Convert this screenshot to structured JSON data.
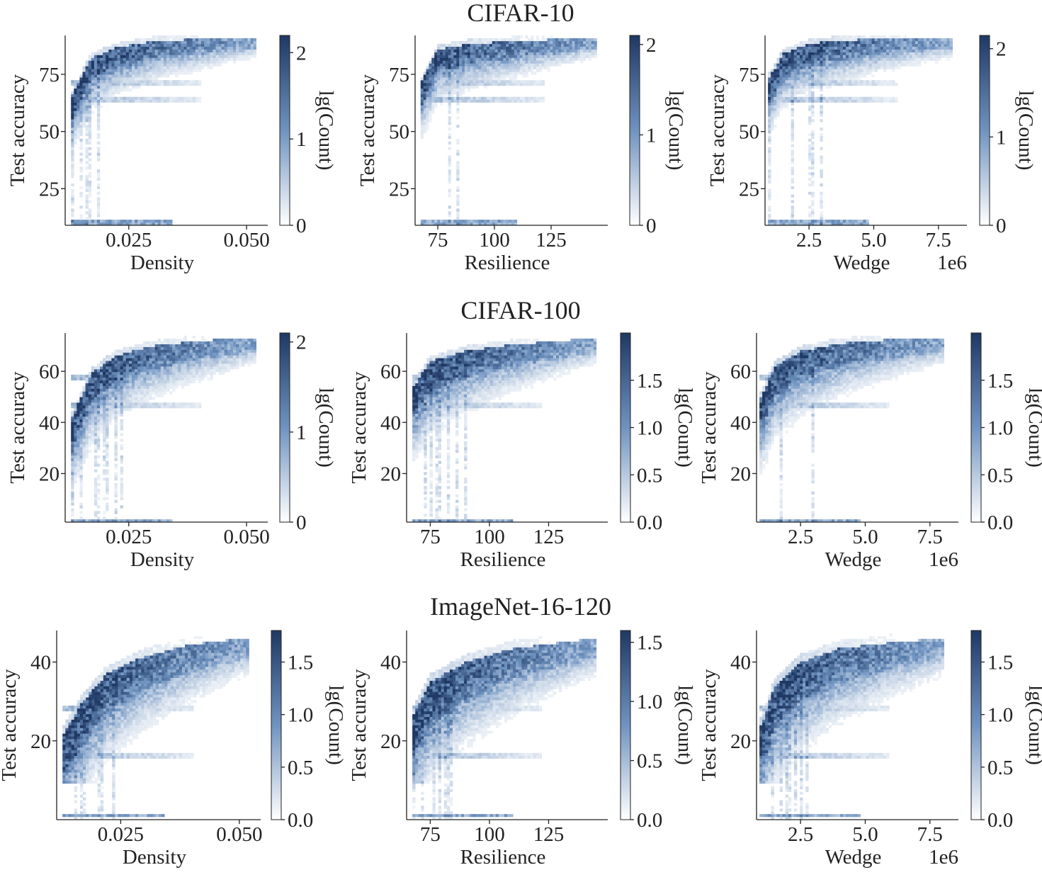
{
  "colors": {
    "cmap_low": "#ffffff",
    "cmap_mid": "#6f93c0",
    "cmap_high": "#1f3864",
    "axis": "#222222"
  },
  "chart_data": [
    {
      "dataset": "CIFAR-10",
      "panels": [
        {
          "type": "heatmap",
          "metric": "density",
          "title": "CIFAR-10",
          "xlabel": "Density",
          "ylabel": "Test accuracy",
          "xlim": [
            0.0115,
            0.0545
          ],
          "ylim": [
            9,
            92
          ],
          "xticks": [
            0.025,
            0.05
          ],
          "xtick_labels": [
            "0.025",
            "0.050"
          ],
          "yticks": [
            25,
            50,
            75
          ],
          "ytick_labels": [
            "25",
            "50",
            "75"
          ],
          "x_offset_label": "",
          "colorbar": {
            "label": "lg(Count)",
            "range": [
              0,
              2.2
            ],
            "ticks": [
              0,
              1,
              2
            ],
            "tick_labels": [
              "0",
              "1",
              "2"
            ]
          }
        },
        {
          "type": "heatmap",
          "metric": "resilience",
          "xlabel": "Resilience",
          "ylabel": "Test accuracy",
          "xlim": [
            65,
            150
          ],
          "ylim": [
            9,
            92
          ],
          "xticks": [
            75,
            100,
            125
          ],
          "xtick_labels": [
            "75",
            "100",
            "125"
          ],
          "yticks": [
            25,
            50,
            75
          ],
          "ytick_labels": [
            "25",
            "50",
            "75"
          ],
          "x_offset_label": "",
          "colorbar": {
            "label": "lg(Count)",
            "range": [
              0,
              2.1
            ],
            "ticks": [
              0,
              1,
              2
            ],
            "tick_labels": [
              "0",
              "1",
              "2"
            ]
          }
        },
        {
          "type": "heatmap",
          "metric": "wedge",
          "xlabel": "Wedge",
          "ylabel": "Test accuracy",
          "xlim": [
            0.8,
            8.6
          ],
          "ylim": [
            9,
            92
          ],
          "xticks": [
            2.5,
            5.0,
            7.5
          ],
          "xtick_labels": [
            "2.5",
            "5.0",
            "7.5"
          ],
          "yticks": [
            25,
            50,
            75
          ],
          "ytick_labels": [
            "25",
            "50",
            "75"
          ],
          "x_offset_label": "1e6",
          "colorbar": {
            "label": "lg(Count)",
            "range": [
              0,
              2.15
            ],
            "ticks": [
              0,
              1,
              2
            ],
            "tick_labels": [
              "0",
              "1",
              "2"
            ]
          }
        }
      ]
    },
    {
      "dataset": "CIFAR-100",
      "panels": [
        {
          "type": "heatmap",
          "metric": "density",
          "title": "CIFAR-100",
          "xlabel": "Density",
          "ylabel": "Test accuracy",
          "xlim": [
            0.0115,
            0.0545
          ],
          "ylim": [
            1,
            75
          ],
          "xticks": [
            0.025,
            0.05
          ],
          "xtick_labels": [
            "0.025",
            "0.050"
          ],
          "yticks": [
            20,
            40,
            60
          ],
          "ytick_labels": [
            "20",
            "40",
            "60"
          ],
          "x_offset_label": "",
          "colorbar": {
            "label": "lg(Count)",
            "range": [
              0,
              2.1
            ],
            "ticks": [
              0,
              1,
              2
            ],
            "tick_labels": [
              "0",
              "1",
              "2"
            ]
          }
        },
        {
          "type": "heatmap",
          "metric": "resilience",
          "xlabel": "Resilience",
          "ylabel": "Test accuracy",
          "xlim": [
            65,
            150
          ],
          "ylim": [
            1,
            75
          ],
          "xticks": [
            75,
            100,
            125
          ],
          "xtick_labels": [
            "75",
            "100",
            "125"
          ],
          "yticks": [
            20,
            40,
            60
          ],
          "ytick_labels": [
            "20",
            "40",
            "60"
          ],
          "x_offset_label": "",
          "colorbar": {
            "label": "lg(Count)",
            "range": [
              0,
              2.0
            ],
            "ticks": [
              0,
              0.5,
              1.0,
              1.5
            ],
            "tick_labels": [
              "0.0",
              "0.5",
              "1.0",
              "1.5"
            ]
          }
        },
        {
          "type": "heatmap",
          "metric": "wedge",
          "xlabel": "Wedge",
          "ylabel": "Test accuracy",
          "xlim": [
            0.8,
            8.6
          ],
          "ylim": [
            1,
            75
          ],
          "xticks": [
            2.5,
            5.0,
            7.5
          ],
          "xtick_labels": [
            "2.5",
            "5.0",
            "7.5"
          ],
          "yticks": [
            20,
            40,
            60
          ],
          "ytick_labels": [
            "20",
            "40",
            "60"
          ],
          "x_offset_label": "1e6",
          "colorbar": {
            "label": "lg(Count)",
            "range": [
              0,
              2.0
            ],
            "ticks": [
              0,
              0.5,
              1.0,
              1.5
            ],
            "tick_labels": [
              "0.0",
              "0.5",
              "1.0",
              "1.5"
            ]
          }
        }
      ]
    },
    {
      "dataset": "ImageNet-16-120",
      "panels": [
        {
          "type": "heatmap",
          "metric": "density",
          "title": "ImageNet-16-120",
          "xlabel": "Density",
          "ylabel": "Test accuracy",
          "xlim": [
            0.0115,
            0.0545
          ],
          "ylim": [
            0,
            48
          ],
          "xticks": [
            0.025,
            0.05
          ],
          "xtick_labels": [
            "0.025",
            "0.050"
          ],
          "yticks": [
            20,
            40
          ],
          "ytick_labels": [
            "20",
            "40"
          ],
          "x_offset_label": "",
          "colorbar": {
            "label": "lg(Count)",
            "range": [
              0,
              1.8
            ],
            "ticks": [
              0,
              0.5,
              1.0,
              1.5
            ],
            "tick_labels": [
              "0.0",
              "0.5",
              "1.0",
              "1.5"
            ]
          }
        },
        {
          "type": "heatmap",
          "metric": "resilience",
          "xlabel": "Resilience",
          "ylabel": "Test accuracy",
          "xlim": [
            65,
            150
          ],
          "ylim": [
            0,
            48
          ],
          "xticks": [
            75,
            100,
            125
          ],
          "xtick_labels": [
            "75",
            "100",
            "125"
          ],
          "yticks": [
            20,
            40
          ],
          "ytick_labels": [
            "20",
            "40"
          ],
          "x_offset_label": "",
          "colorbar": {
            "label": "lg(Count)",
            "range": [
              0,
              1.6
            ],
            "ticks": [
              0,
              0.5,
              1.0,
              1.5
            ],
            "tick_labels": [
              "0.0",
              "0.5",
              "1.0",
              "1.5"
            ]
          }
        },
        {
          "type": "heatmap",
          "metric": "wedge",
          "xlabel": "Wedge",
          "ylabel": "Test accuracy",
          "xlim": [
            0.8,
            8.6
          ],
          "ylim": [
            0,
            48
          ],
          "xticks": [
            2.5,
            5.0,
            7.5
          ],
          "xtick_labels": [
            "2.5",
            "5.0",
            "7.5"
          ],
          "yticks": [
            20,
            40
          ],
          "ytick_labels": [
            "20",
            "40"
          ],
          "x_offset_label": "1e6",
          "colorbar": {
            "label": "lg(Count)",
            "range": [
              0,
              1.8
            ],
            "ticks": [
              0,
              0.5,
              1.0,
              1.5
            ],
            "tick_labels": [
              "0.0",
              "0.5",
              "1.0",
              "1.5"
            ]
          }
        }
      ]
    }
  ],
  "density_model": {
    "CIFAR-10": {
      "floor_y": 10,
      "curve": {
        "density": [
          [
            0.013,
            64
          ],
          [
            0.017,
            80
          ],
          [
            0.022,
            84.5
          ],
          [
            0.03,
            87.5
          ],
          [
            0.04,
            88.5
          ],
          [
            0.05,
            89
          ]
        ],
        "resilience": [
          [
            68,
            70
          ],
          [
            75,
            84
          ],
          [
            90,
            86.5
          ],
          [
            110,
            87.5
          ],
          [
            130,
            88.5
          ],
          [
            145,
            89
          ]
        ],
        "wedge": [
          [
            1.0,
            72
          ],
          [
            1.5,
            82
          ],
          [
            2.5,
            86.5
          ],
          [
            4.0,
            88
          ],
          [
            6.0,
            89
          ],
          [
            8.0,
            89
          ]
        ]
      },
      "spread": 12,
      "main_yrange": [
        30,
        91
      ],
      "bands": [
        71,
        64
      ],
      "x_extent": {
        "density": [
          0.0125,
          0.052
        ],
        "resilience": [
          67,
          145
        ],
        "wedge": [
          0.95,
          8.0
        ]
      }
    },
    "CIFAR-100": {
      "floor_y": 1,
      "curve": {
        "density": [
          [
            0.013,
            40
          ],
          [
            0.017,
            57
          ],
          [
            0.022,
            64
          ],
          [
            0.03,
            68
          ],
          [
            0.04,
            70
          ],
          [
            0.05,
            71
          ]
        ],
        "resilience": [
          [
            68,
            52
          ],
          [
            75,
            62
          ],
          [
            90,
            66
          ],
          [
            110,
            68.5
          ],
          [
            130,
            70
          ],
          [
            145,
            71
          ]
        ],
        "wedge": [
          [
            1.0,
            48
          ],
          [
            1.5,
            60
          ],
          [
            2.5,
            66
          ],
          [
            4.0,
            69
          ],
          [
            6.0,
            70.5
          ],
          [
            8.0,
            71
          ]
        ]
      },
      "spread": 15,
      "main_yrange": [
        10,
        73
      ],
      "bands": [
        47,
        58
      ],
      "x_extent": {
        "density": [
          0.0125,
          0.052
        ],
        "resilience": [
          67,
          145
        ],
        "wedge": [
          0.95,
          8.0
        ]
      }
    },
    "ImageNet-16-120": {
      "floor_y": 1,
      "curve": {
        "density": [
          [
            0.013,
            20
          ],
          [
            0.017,
            28
          ],
          [
            0.022,
            35
          ],
          [
            0.03,
            39.5
          ],
          [
            0.04,
            42.5
          ],
          [
            0.05,
            44
          ]
        ],
        "resilience": [
          [
            68,
            25
          ],
          [
            75,
            33
          ],
          [
            90,
            38
          ],
          [
            110,
            41.5
          ],
          [
            130,
            43
          ],
          [
            145,
            44
          ]
        ],
        "wedge": [
          [
            1.0,
            22
          ],
          [
            1.5,
            32
          ],
          [
            2.5,
            38
          ],
          [
            4.0,
            41.5
          ],
          [
            6.0,
            43
          ],
          [
            8.0,
            44
          ]
        ]
      },
      "spread": 13,
      "main_yrange": [
        9,
        46
      ],
      "bands": [
        16,
        28
      ],
      "x_extent": {
        "density": [
          0.0125,
          0.052
        ],
        "resilience": [
          67,
          145
        ],
        "wedge": [
          0.95,
          8.0
        ]
      }
    }
  }
}
